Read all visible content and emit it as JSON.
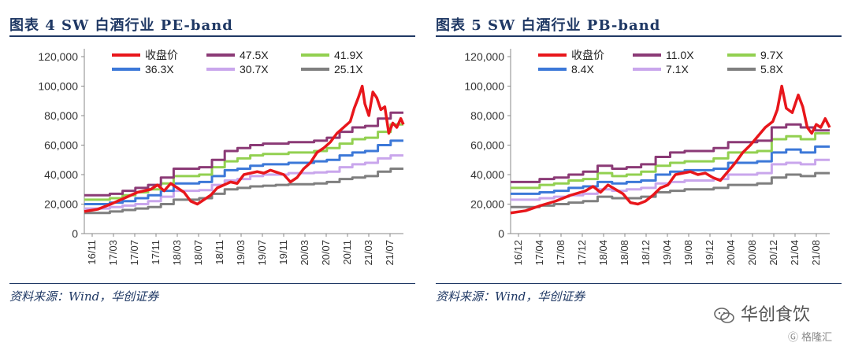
{
  "charts": [
    {
      "title": "图表 4    SW 白酒行业 PE-band",
      "source": "资料来源：Wind，华创证券",
      "chart_data": {
        "type": "line",
        "x_tick_labels": [
          "16/11",
          "17/03",
          "17/07",
          "17/11",
          "18/03",
          "18/07",
          "18/11",
          "19/03",
          "19/07",
          "19/11",
          "20/03",
          "20/07",
          "20/11",
          "21/03",
          "21/07"
        ],
        "y_ticks": [
          "0",
          "20,000",
          "40,000",
          "60,000",
          "80,000",
          "100,000",
          "120,000"
        ],
        "ylim": [
          0,
          120000
        ],
        "legend_position": "top",
        "series": [
          {
            "name": "收盘价",
            "color": "#e8161b",
            "width": 3.5,
            "points": [
              [
                0,
                15000
              ],
              [
                1,
                16500
              ],
              [
                2,
                20000
              ],
              [
                3,
                24000
              ],
              [
                4,
                28000
              ],
              [
                5,
                30000
              ],
              [
                5.5,
                33000
              ],
              [
                6,
                29000
              ],
              [
                6.5,
                34000
              ],
              [
                7,
                31000
              ],
              [
                7.5,
                28000
              ],
              [
                8,
                22000
              ],
              [
                8.5,
                20000
              ],
              [
                9,
                23000
              ],
              [
                9.5,
                26000
              ],
              [
                10,
                31000
              ],
              [
                10.5,
                33000
              ],
              [
                11,
                35000
              ],
              [
                11.5,
                34000
              ],
              [
                12,
                40000
              ],
              [
                12.5,
                41000
              ],
              [
                13,
                42000
              ],
              [
                13.5,
                41000
              ],
              [
                14,
                43000
              ],
              [
                14.5,
                41500
              ],
              [
                15,
                40000
              ],
              [
                15.5,
                35000
              ],
              [
                16,
                38000
              ],
              [
                16.5,
                44000
              ],
              [
                17,
                48000
              ],
              [
                17.5,
                55000
              ],
              [
                18,
                58000
              ],
              [
                18.5,
                62000
              ],
              [
                19,
                68000
              ],
              [
                19.5,
                72000
              ],
              [
                20,
                76000
              ],
              [
                20.3,
                85000
              ],
              [
                20.6,
                92000
              ],
              [
                20.9,
                100000
              ],
              [
                21.1,
                88000
              ],
              [
                21.4,
                80000
              ],
              [
                21.7,
                96000
              ],
              [
                22,
                92000
              ],
              [
                22.3,
                84000
              ],
              [
                22.6,
                86000
              ],
              [
                22.9,
                68000
              ],
              [
                23.2,
                75000
              ],
              [
                23.5,
                72000
              ],
              [
                23.8,
                78000
              ],
              [
                24,
                74000
              ]
            ]
          },
          {
            "name": "47.5X",
            "color": "#8b3a76",
            "width": 3,
            "steps": [
              26000,
              26000,
              27000,
              29000,
              31000,
              33000,
              38000,
              44000,
              44000,
              45000,
              50000,
              56000,
              58000,
              60000,
              61000,
              61000,
              62000,
              62000,
              63000,
              65000,
              69000,
              72000,
              73000,
              78000,
              82000
            ]
          },
          {
            "name": "41.9X",
            "color": "#92d050",
            "width": 3,
            "steps": [
              23000,
              23000,
              24000,
              26000,
              28000,
              30000,
              34000,
              39000,
              39000,
              40000,
              45000,
              49000,
              51000,
              53000,
              54000,
              54000,
              55000,
              55000,
              56000,
              58000,
              61000,
              64000,
              65000,
              69000,
              74000
            ]
          },
          {
            "name": "36.3X",
            "color": "#3c78d8",
            "width": 3,
            "steps": [
              20000,
              20000,
              21000,
              22000,
              24000,
              26000,
              29000,
              34000,
              34000,
              35000,
              39000,
              43000,
              44000,
              46000,
              47000,
              47000,
              48000,
              48000,
              49000,
              50000,
              53000,
              55000,
              56000,
              60000,
              63000
            ]
          },
          {
            "name": "30.7X",
            "color": "#c9a6ec",
            "width": 3,
            "steps": [
              17000,
              17000,
              18000,
              19000,
              20000,
              22000,
              25000,
              29000,
              29000,
              29500,
              33000,
              36000,
              37000,
              39000,
              40000,
              40000,
              41000,
              41000,
              41500,
              42000,
              45000,
              47000,
              48000,
              51000,
              53000
            ]
          },
          {
            "name": "25.1X",
            "color": "#7f7f7f",
            "width": 3,
            "steps": [
              14000,
              14000,
              15000,
              16000,
              17000,
              18000,
              20000,
              23000,
              23000,
              24000,
              27000,
              30000,
              31000,
              32000,
              32500,
              33000,
              33500,
              33500,
              34000,
              35000,
              37000,
              38000,
              39000,
              42000,
              44000
            ]
          }
        ]
      }
    },
    {
      "title": "图表 5    SW 白酒行业 PB-band",
      "source": "资料来源：Wind，华创证券",
      "chart_data": {
        "type": "line",
        "x_tick_labels": [
          "16/12",
          "17/04",
          "17/08",
          "17/12",
          "18/04",
          "18/08",
          "18/12",
          "19/04",
          "19/08",
          "19/12",
          "20/04",
          "20/08",
          "20/12",
          "21/04",
          "21/08"
        ],
        "y_ticks": [
          "0",
          "20,000",
          "40,000",
          "60,000",
          "80,000",
          "100,000",
          "120,000"
        ],
        "ylim": [
          0,
          120000
        ],
        "legend_position": "top",
        "series": [
          {
            "name": "收盘价",
            "color": "#e8161b",
            "width": 3.5,
            "points": [
              [
                0,
                14000
              ],
              [
                1,
                15500
              ],
              [
                2,
                19000
              ],
              [
                3,
                22000
              ],
              [
                4,
                26000
              ],
              [
                5,
                29000
              ],
              [
                5.5,
                32000
              ],
              [
                6,
                28000
              ],
              [
                6.5,
                33000
              ],
              [
                7,
                30000
              ],
              [
                7.5,
                27000
              ],
              [
                8,
                21000
              ],
              [
                8.5,
                20000
              ],
              [
                9,
                22000
              ],
              [
                9.5,
                26000
              ],
              [
                10,
                31000
              ],
              [
                10.5,
                33000
              ],
              [
                11,
                40000
              ],
              [
                11.5,
                41000
              ],
              [
                12,
                42000
              ],
              [
                12.5,
                40000
              ],
              [
                13,
                41000
              ],
              [
                13.5,
                38000
              ],
              [
                14,
                36000
              ],
              [
                14.5,
                42000
              ],
              [
                15,
                48000
              ],
              [
                15.5,
                55000
              ],
              [
                16,
                60000
              ],
              [
                16.5,
                66000
              ],
              [
                17,
                72000
              ],
              [
                17.5,
                76000
              ],
              [
                17.8,
                84000
              ],
              [
                18.1,
                100000
              ],
              [
                18.4,
                85000
              ],
              [
                18.8,
                82000
              ],
              [
                19.2,
                94000
              ],
              [
                19.5,
                86000
              ],
              [
                19.8,
                72000
              ],
              [
                20.1,
                68000
              ],
              [
                20.4,
                74000
              ],
              [
                20.7,
                72000
              ],
              [
                21,
                78000
              ],
              [
                21.3,
                72000
              ]
            ]
          },
          {
            "name": "11.0X",
            "color": "#8b3a76",
            "width": 3,
            "steps": [
              35000,
              35000,
              37000,
              38000,
              40000,
              42000,
              46000,
              44000,
              45000,
              47000,
              52000,
              55000,
              56000,
              56000,
              58000,
              62000,
              62000,
              63000,
              72000,
              74000,
              72000,
              70000
            ]
          },
          {
            "name": "9.7X",
            "color": "#92d050",
            "width": 3,
            "steps": [
              31000,
              31000,
              33000,
              34000,
              36000,
              37000,
              41000,
              39000,
              40000,
              42000,
              46000,
              48000,
              49000,
              49000,
              51000,
              55000,
              55000,
              56000,
              64000,
              66000,
              64000,
              68000
            ]
          },
          {
            "name": "8.4X",
            "color": "#3c78d8",
            "width": 3,
            "steps": [
              27000,
              27000,
              28000,
              29000,
              31000,
              32000,
              35000,
              34000,
              35000,
              36000,
              40000,
              42000,
              43000,
              43000,
              44000,
              48000,
              48000,
              49000,
              55000,
              57000,
              55000,
              59000
            ]
          },
          {
            "name": "7.1X",
            "color": "#c9a6ec",
            "width": 3,
            "steps": [
              23000,
              23000,
              24000,
              25000,
              26000,
              27000,
              30000,
              29000,
              30000,
              31000,
              34000,
              35000,
              36000,
              36000,
              37000,
              40000,
              40000,
              41000,
              47000,
              48000,
              47000,
              50000
            ]
          },
          {
            "name": "5.8X",
            "color": "#7f7f7f",
            "width": 3,
            "steps": [
              18000,
              18000,
              19000,
              20000,
              21000,
              22000,
              25000,
              24000,
              24000,
              25000,
              28000,
              29000,
              30000,
              30000,
              31000,
              33000,
              33000,
              34000,
              38000,
              40000,
              39000,
              41000
            ]
          }
        ]
      }
    }
  ],
  "watermark": {
    "brand": "华创食饮",
    "site": "格隆汇"
  }
}
